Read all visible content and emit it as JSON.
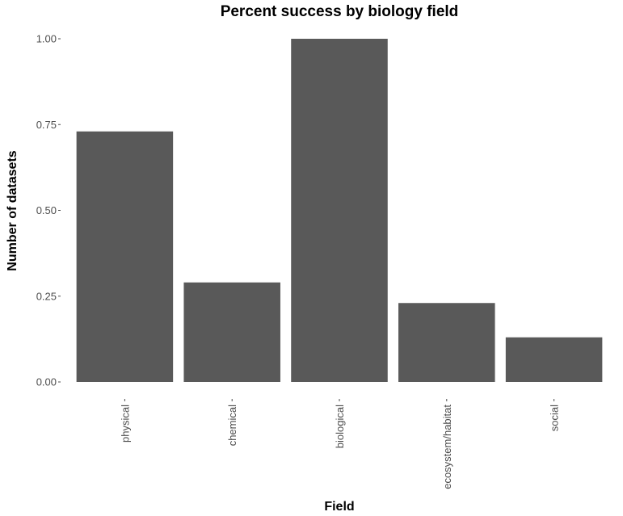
{
  "chart_data": {
    "type": "bar",
    "title": "Percent success by biology field",
    "xlabel": "Field",
    "ylabel": "Number of datasets",
    "categories": [
      "physical",
      "chemical",
      "biological",
      "ecosystem/habitat",
      "social"
    ],
    "values": [
      0.73,
      0.29,
      1.0,
      0.23,
      0.13
    ],
    "ylim": [
      0,
      1.0
    ],
    "yticks": [
      "0.00",
      "0.25",
      "0.50",
      "0.75",
      "1.00"
    ],
    "grid": false,
    "bar_color": "#595959"
  }
}
